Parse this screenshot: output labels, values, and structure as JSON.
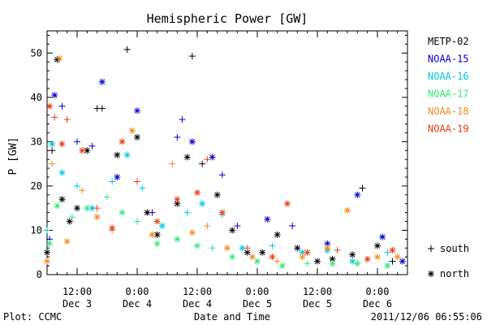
{
  "chart_data": {
    "type": "scatter",
    "title": "Hemispheric Power [GW]",
    "ylabel": "P [GW]",
    "xlabel": "Date and Time",
    "ylim": [
      0,
      55
    ],
    "y_ticks": [
      0,
      10,
      20,
      30,
      40,
      50
    ],
    "x_ticks": [
      {
        "x": "2011-12-03 12:00",
        "time": "12:00",
        "date": "Dec 3"
      },
      {
        "x": "2011-12-04 00:00",
        "time": "0:00",
        "date": "Dec 4"
      },
      {
        "x": "2011-12-04 12:00",
        "time": "12:00",
        "date": "Dec 4"
      },
      {
        "x": "2011-12-05 00:00",
        "time": "0:00",
        "date": "Dec 5"
      },
      {
        "x": "2011-12-05 12:00",
        "time": "12:00",
        "date": "Dec 5"
      },
      {
        "x": "2011-12-06 00:00",
        "time": "0:00",
        "date": "Dec 6"
      }
    ],
    "xlim": [
      "2011-12-03 06:00",
      "2011-12-06 06:00"
    ],
    "legend_position": "right",
    "series": [
      {
        "name": "METP-02",
        "color": "#000000",
        "values": [
          [
            "2011-12-03 06:00",
            5.0,
            "north"
          ],
          [
            "2011-12-03 07:00",
            28.0,
            "south"
          ],
          [
            "2011-12-03 08:00",
            48.5,
            "north"
          ],
          [
            "2011-12-03 09:00",
            17.0,
            "north"
          ],
          [
            "2011-12-03 10:30",
            12.0,
            "north"
          ],
          [
            "2011-12-03 12:00",
            15.0,
            "north"
          ],
          [
            "2011-12-03 14:00",
            28.0,
            "north"
          ],
          [
            "2011-12-03 16:00",
            37.5,
            "south"
          ],
          [
            "2011-12-03 17:00",
            37.5,
            "south"
          ],
          [
            "2011-12-03 20:00",
            27.0,
            "north"
          ],
          [
            "2011-12-03 22:00",
            50.8,
            "south"
          ],
          [
            "2011-12-04 00:00",
            31.0,
            "north"
          ],
          [
            "2011-12-04 02:00",
            14.0,
            "north"
          ],
          [
            "2011-12-04 04:00",
            9.0,
            "north"
          ],
          [
            "2011-12-04 08:00",
            16.0,
            "north"
          ],
          [
            "2011-12-04 10:00",
            26.5,
            "north"
          ],
          [
            "2011-12-04 11:00",
            49.3,
            "south"
          ],
          [
            "2011-12-04 13:00",
            25.0,
            "south"
          ],
          [
            "2011-12-04 16:00",
            18.0,
            "north"
          ],
          [
            "2011-12-04 19:00",
            10.0,
            "north"
          ],
          [
            "2011-12-04 22:00",
            5.0,
            "north"
          ],
          [
            "2011-12-05 01:00",
            5.0,
            "north"
          ],
          [
            "2011-12-05 04:00",
            9.0,
            "north"
          ],
          [
            "2011-12-05 08:00",
            6.0,
            "north"
          ],
          [
            "2011-12-05 12:00",
            3.0,
            "north"
          ],
          [
            "2011-12-05 15:00",
            3.5,
            "north"
          ],
          [
            "2011-12-05 19:00",
            4.5,
            "north"
          ],
          [
            "2011-12-05 21:00",
            19.5,
            "south"
          ],
          [
            "2011-12-06 00:00",
            6.5,
            "north"
          ],
          [
            "2011-12-06 03:00",
            3.0,
            "south"
          ]
        ]
      },
      {
        "name": "NOAA-15",
        "color": "#0000cc",
        "values": [
          [
            "2011-12-03 06:30",
            8.0,
            "south"
          ],
          [
            "2011-12-03 07:30",
            40.5,
            "north"
          ],
          [
            "2011-12-03 09:00",
            38.0,
            "south"
          ],
          [
            "2011-12-03 12:00",
            30.0,
            "south"
          ],
          [
            "2011-12-03 15:00",
            29.0,
            "south"
          ],
          [
            "2011-12-03 17:00",
            43.5,
            "north"
          ],
          [
            "2011-12-03 20:00",
            22.0,
            "north"
          ],
          [
            "2011-12-04 00:00",
            37.0,
            "north"
          ],
          [
            "2011-12-04 03:00",
            14.0,
            "south"
          ],
          [
            "2011-12-04 08:00",
            31.0,
            "south"
          ],
          [
            "2011-12-04 09:00",
            35.0,
            "south"
          ],
          [
            "2011-12-04 11:00",
            30.0,
            "north"
          ],
          [
            "2011-12-04 15:00",
            26.5,
            "north"
          ],
          [
            "2011-12-04 17:00",
            22.5,
            "south"
          ],
          [
            "2011-12-04 20:00",
            11.0,
            "south"
          ],
          [
            "2011-12-05 02:00",
            12.5,
            "north"
          ],
          [
            "2011-12-05 07:00",
            11.0,
            "south"
          ],
          [
            "2011-12-05 14:00",
            7.0,
            "north"
          ],
          [
            "2011-12-05 20:00",
            18.0,
            "north"
          ],
          [
            "2011-12-06 01:00",
            8.5,
            "north"
          ],
          [
            "2011-12-06 05:00",
            3.0,
            "north"
          ]
        ]
      },
      {
        "name": "NOAA-16",
        "color": "#00c8e6",
        "values": [
          [
            "2011-12-03 06:00",
            10.0,
            "south"
          ],
          [
            "2011-12-03 07:00",
            29.5,
            "north"
          ],
          [
            "2011-12-03 09:00",
            23.0,
            "north"
          ],
          [
            "2011-12-03 12:00",
            20.0,
            "south"
          ],
          [
            "2011-12-03 15:00",
            15.0,
            "north"
          ],
          [
            "2011-12-03 19:00",
            21.0,
            "south"
          ],
          [
            "2011-12-03 22:00",
            27.0,
            "north"
          ],
          [
            "2011-12-04 01:00",
            19.5,
            "south"
          ],
          [
            "2011-12-04 05:00",
            11.0,
            "north"
          ],
          [
            "2011-12-04 10:00",
            14.0,
            "south"
          ],
          [
            "2011-12-04 13:00",
            16.0,
            "north"
          ],
          [
            "2011-12-04 17:00",
            13.5,
            "south"
          ],
          [
            "2011-12-04 21:00",
            6.0,
            "north"
          ],
          [
            "2011-12-05 03:00",
            6.5,
            "south"
          ],
          [
            "2011-12-05 09:00",
            5.0,
            "north"
          ],
          [
            "2011-12-05 14:00",
            5.5,
            "north"
          ],
          [
            "2011-12-05 19:00",
            3.0,
            "north"
          ],
          [
            "2011-12-06 02:00",
            5.0,
            "south"
          ]
        ]
      },
      {
        "name": "NOAA-17",
        "color": "#33e680",
        "values": [
          [
            "2011-12-03 06:30",
            7.0,
            "north"
          ],
          [
            "2011-12-03 08:00",
            15.5,
            "north"
          ],
          [
            "2011-12-03 11:00",
            13.0,
            "south"
          ],
          [
            "2011-12-03 14:00",
            15.0,
            "north"
          ],
          [
            "2011-12-03 18:00",
            17.5,
            "south"
          ],
          [
            "2011-12-03 21:00",
            14.0,
            "north"
          ],
          [
            "2011-12-04 00:00",
            12.0,
            "south"
          ],
          [
            "2011-12-04 04:00",
            7.0,
            "north"
          ],
          [
            "2011-12-04 08:00",
            8.0,
            "north"
          ],
          [
            "2011-12-04 12:00",
            6.5,
            "north"
          ],
          [
            "2011-12-04 15:00",
            6.0,
            "south"
          ],
          [
            "2011-12-04 19:00",
            4.0,
            "north"
          ],
          [
            "2011-12-05 00:00",
            3.0,
            "north"
          ],
          [
            "2011-12-05 05:00",
            2.0,
            "north"
          ],
          [
            "2011-12-05 10:00",
            2.5,
            "south"
          ],
          [
            "2011-12-05 15:00",
            2.5,
            "north"
          ],
          [
            "2011-12-05 20:00",
            2.5,
            "north"
          ],
          [
            "2011-12-06 02:00",
            2.0,
            "north"
          ]
        ]
      },
      {
        "name": "NOAA-18",
        "color": "#f08c1e",
        "values": [
          [
            "2011-12-03 06:00",
            3.0,
            "north"
          ],
          [
            "2011-12-03 07:00",
            25.0,
            "south"
          ],
          [
            "2011-12-03 08:30",
            48.8,
            "north"
          ],
          [
            "2011-12-03 10:00",
            7.5,
            "north"
          ],
          [
            "2011-12-03 13:00",
            19.0,
            "south"
          ],
          [
            "2011-12-03 16:00",
            13.0,
            "north"
          ],
          [
            "2011-12-03 19:00",
            10.0,
            "south"
          ],
          [
            "2011-12-03 23:00",
            32.5,
            "north"
          ],
          [
            "2011-12-04 03:00",
            9.0,
            "north"
          ],
          [
            "2011-12-04 07:00",
            25.0,
            "south"
          ],
          [
            "2011-12-04 11:00",
            9.5,
            "north"
          ],
          [
            "2011-12-04 14:00",
            11.0,
            "south"
          ],
          [
            "2011-12-04 18:00",
            6.0,
            "north"
          ],
          [
            "2011-12-04 23:00",
            4.0,
            "north"
          ],
          [
            "2011-12-05 04:00",
            3.0,
            "south"
          ],
          [
            "2011-12-05 09:00",
            4.0,
            "north"
          ],
          [
            "2011-12-05 14:00",
            6.0,
            "north"
          ],
          [
            "2011-12-05 18:00",
            14.5,
            "north"
          ],
          [
            "2011-12-06 00:00",
            4.0,
            "north"
          ],
          [
            "2011-12-06 04:00",
            4.0,
            "north"
          ]
        ]
      },
      {
        "name": "NOAA-19",
        "color": "#e63c14",
        "values": [
          [
            "2011-12-03 06:30",
            38.0,
            "north"
          ],
          [
            "2011-12-03 07:30",
            35.5,
            "south"
          ],
          [
            "2011-12-03 09:00",
            29.5,
            "north"
          ],
          [
            "2011-12-03 10:00",
            35.0,
            "south"
          ],
          [
            "2011-12-03 13:00",
            28.0,
            "north"
          ],
          [
            "2011-12-03 16:00",
            15.0,
            "south"
          ],
          [
            "2011-12-03 19:00",
            10.5,
            "north"
          ],
          [
            "2011-12-03 21:00",
            30.0,
            "north"
          ],
          [
            "2011-12-04 00:00",
            21.0,
            "south"
          ],
          [
            "2011-12-04 04:00",
            12.0,
            "north"
          ],
          [
            "2011-12-04 08:00",
            17.0,
            "north"
          ],
          [
            "2011-12-04 12:00",
            18.5,
            "north"
          ],
          [
            "2011-12-04 14:00",
            26.0,
            "south"
          ],
          [
            "2011-12-04 17:00",
            14.0,
            "north"
          ],
          [
            "2011-12-04 22:00",
            6.0,
            "south"
          ],
          [
            "2011-12-05 03:00",
            4.0,
            "north"
          ],
          [
            "2011-12-05 06:00",
            16.0,
            "north"
          ],
          [
            "2011-12-05 10:00",
            5.0,
            "north"
          ],
          [
            "2011-12-05 16:00",
            5.5,
            "south"
          ],
          [
            "2011-12-05 22:00",
            3.5,
            "north"
          ],
          [
            "2011-12-06 03:00",
            5.5,
            "north"
          ]
        ]
      }
    ],
    "marker_legend": [
      {
        "symbol": "+",
        "label": "south"
      },
      {
        "symbol": "*",
        "label": "north"
      }
    ]
  },
  "footer": {
    "left": "Plot: CCMC",
    "right": "2011/12/06 06:55:06"
  }
}
